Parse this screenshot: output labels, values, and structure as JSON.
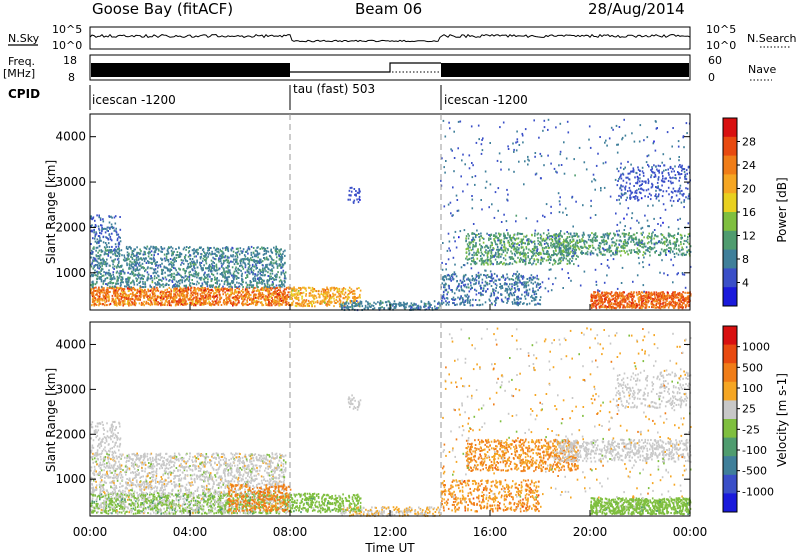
{
  "header": {
    "station": "Goose Bay (fitACF)",
    "beam": "Beam 06",
    "date": "28/Aug/2014"
  },
  "status": {
    "left_labels": {
      "nsky": "N.Sky",
      "freq": "Freq.",
      "freq_unit": "[MHz]",
      "cpid": "CPID"
    },
    "right_labels": {
      "nsearch": "N.Search",
      "nave": "Nave"
    },
    "noise_ticks_left": [
      "10^5",
      "10^0"
    ],
    "noise_ticks_right": [
      "10^5",
      "10^0"
    ],
    "freq_ticks": [
      "18",
      "8"
    ],
    "nave_ticks": [
      "60",
      "0"
    ],
    "cpid_segments": [
      {
        "label": "icescan -1200",
        "start_h": 0,
        "end_h": 8
      },
      {
        "label": "tau (fast) 503",
        "start_h": 8,
        "end_h": 14
      },
      {
        "label": "icescan -1200",
        "start_h": 14,
        "end_h": 24
      }
    ]
  },
  "colors": {
    "power_scale": [
      "#1a1adb",
      "#3a4fc8",
      "#3f7f9a",
      "#4f9c6f",
      "#7fbf3f",
      "#e8d020",
      "#f5a623",
      "#f07d18",
      "#e84a10",
      "#d81010"
    ],
    "velocity_scale": [
      "#1a1adb",
      "#3a4fc8",
      "#3f7f9a",
      "#4f9c6f",
      "#7fbf3f",
      "#c8c8c8",
      "#f5a623",
      "#f07d18",
      "#e84a10",
      "#d81010"
    ]
  },
  "chart_data": [
    {
      "type": "heatmap",
      "title": "",
      "xlabel": "Time UT",
      "ylabel": "Slant Range [km]",
      "colorbar_label": "Power [dB]",
      "colorbar_ticks": [
        "28",
        "24",
        "20",
        "16",
        "12",
        "8",
        "4"
      ],
      "xlim": [
        0,
        24
      ],
      "ylim": [
        180,
        4500
      ],
      "y_ticks": [
        1000,
        2000,
        3000,
        4000
      ],
      "blobs": [
        {
          "t0": 0,
          "t1": 8,
          "r0": 300,
          "r1": 700,
          "n": 1400,
          "mean_level": 7,
          "spread": 2.5
        },
        {
          "t0": 0,
          "t1": 7.8,
          "r0": 700,
          "r1": 1600,
          "n": 1600,
          "mean_level": 2.2,
          "spread": 1.5
        },
        {
          "t0": 0,
          "t1": 1.2,
          "r0": 1600,
          "r1": 2300,
          "n": 120,
          "mean_level": 1.5,
          "spread": 1
        },
        {
          "t0": 8,
          "t1": 10.8,
          "r0": 280,
          "r1": 700,
          "n": 320,
          "mean_level": 6,
          "spread": 2
        },
        {
          "t0": 10,
          "t1": 14,
          "r0": 200,
          "r1": 400,
          "n": 200,
          "mean_level": 2,
          "spread": 1.2
        },
        {
          "t0": 10.3,
          "t1": 10.8,
          "r0": 2550,
          "r1": 2900,
          "n": 30,
          "mean_level": 1,
          "spread": 0.6
        },
        {
          "t0": 14,
          "t1": 18,
          "r0": 300,
          "r1": 1000,
          "n": 450,
          "mean_level": 1.8,
          "spread": 1.2
        },
        {
          "t0": 15,
          "t1": 19.5,
          "r0": 1200,
          "r1": 1900,
          "n": 650,
          "mean_level": 3,
          "spread": 1.6
        },
        {
          "t0": 18.5,
          "t1": 24,
          "r0": 1400,
          "r1": 1900,
          "n": 550,
          "mean_level": 3,
          "spread": 1.5
        },
        {
          "t0": 20,
          "t1": 24,
          "r0": 240,
          "r1": 600,
          "n": 700,
          "mean_level": 7.5,
          "spread": 1.8
        },
        {
          "t0": 21,
          "t1": 24,
          "r0": 2600,
          "r1": 3400,
          "n": 250,
          "mean_level": 1.2,
          "spread": 0.8
        },
        {
          "t0": 14,
          "t1": 24,
          "r0": 600,
          "r1": 4400,
          "n": 500,
          "mean_level": 1.5,
          "spread": 1.2
        }
      ]
    },
    {
      "type": "heatmap",
      "title": "",
      "xlabel": "Time UT",
      "ylabel": "Slant Range [km]",
      "colorbar_label": "Velocity [m s-1]",
      "colorbar_ticks": [
        "1000",
        "500",
        "100",
        "25",
        "-25",
        "-100",
        "-500",
        "-1000"
      ],
      "xlim": [
        0,
        24
      ],
      "ylim": [
        180,
        4500
      ],
      "y_ticks": [
        1000,
        2000,
        3000,
        4000
      ],
      "blobs": [
        {
          "t0": 0,
          "t1": 8,
          "r0": 250,
          "r1": 700,
          "n": 1300,
          "mean_level": 4.4,
          "spread": 1.6
        },
        {
          "t0": 0,
          "t1": 7.8,
          "r0": 700,
          "r1": 1600,
          "n": 1500,
          "mean_level": 5,
          "spread": 1
        },
        {
          "t0": 0,
          "t1": 1.2,
          "r0": 1600,
          "r1": 2300,
          "n": 120,
          "mean_level": 5,
          "spread": 0.5
        },
        {
          "t0": 5.5,
          "t1": 8,
          "r0": 300,
          "r1": 900,
          "n": 300,
          "mean_level": 6.8,
          "spread": 0.8
        },
        {
          "t0": 8,
          "t1": 10.8,
          "r0": 280,
          "r1": 700,
          "n": 320,
          "mean_level": 4,
          "spread": 0.8
        },
        {
          "t0": 10,
          "t1": 14,
          "r0": 200,
          "r1": 400,
          "n": 200,
          "mean_level": 5.5,
          "spread": 1
        },
        {
          "t0": 10.3,
          "t1": 10.8,
          "r0": 2550,
          "r1": 2900,
          "n": 30,
          "mean_level": 5,
          "spread": 0.3
        },
        {
          "t0": 14,
          "t1": 18,
          "r0": 300,
          "r1": 1000,
          "n": 450,
          "mean_level": 6.5,
          "spread": 1.5
        },
        {
          "t0": 15,
          "t1": 19.5,
          "r0": 1200,
          "r1": 1900,
          "n": 650,
          "mean_level": 6.6,
          "spread": 1.2
        },
        {
          "t0": 18.5,
          "t1": 24,
          "r0": 1400,
          "r1": 1900,
          "n": 550,
          "mean_level": 5,
          "spread": 0.4
        },
        {
          "t0": 20,
          "t1": 24,
          "r0": 240,
          "r1": 600,
          "n": 700,
          "mean_level": 4,
          "spread": 0.8
        },
        {
          "t0": 21,
          "t1": 24,
          "r0": 2600,
          "r1": 3400,
          "n": 250,
          "mean_level": 5,
          "spread": 0.3
        },
        {
          "t0": 14,
          "t1": 24,
          "r0": 600,
          "r1": 4400,
          "n": 500,
          "mean_level": 5.5,
          "spread": 2
        }
      ]
    }
  ],
  "x_ticks": [
    "00:00",
    "04:00",
    "08:00",
    "12:00",
    "16:00",
    "20:00",
    "00:00"
  ]
}
